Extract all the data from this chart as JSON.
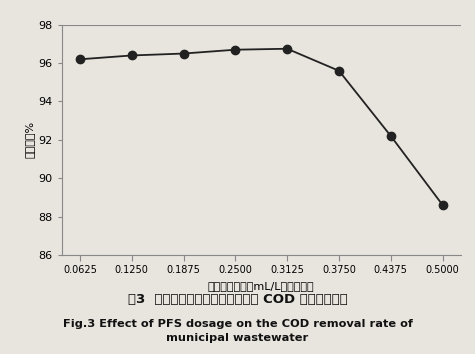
{
  "x": [
    0.0625,
    0.125,
    0.1875,
    0.25,
    0.3125,
    0.375,
    0.4375,
    0.5
  ],
  "y": [
    96.2,
    96.4,
    96.5,
    96.7,
    96.75,
    95.6,
    92.2,
    88.6
  ],
  "x_tick_labels": [
    "0.0625",
    "0.1250",
    "0.1875",
    "0.2500",
    "0.3125",
    "0.3750",
    "0.4375",
    "0.5000"
  ],
  "ylabel_chinese": "去除率，%",
  "xlabel_chinese": "聚合硫酸铁用量mL/L高岭土溶液",
  "ylim": [
    86,
    98
  ],
  "yticks": [
    86,
    88,
    90,
    92,
    94,
    96,
    98
  ],
  "title_chinese": "图3  聚合硫酸铁投加量对市政废水 COD 去除率的影响",
  "title_english": "Fig.3 Effect of PFS dosage on the COD removal rate of\nmunicipal wastewater",
  "line_color": "#222222",
  "marker_color": "#222222",
  "marker_size": 6,
  "line_width": 1.3,
  "bg_color": "#e8e4de",
  "top_line_color": "#888888",
  "spine_color": "#888888"
}
